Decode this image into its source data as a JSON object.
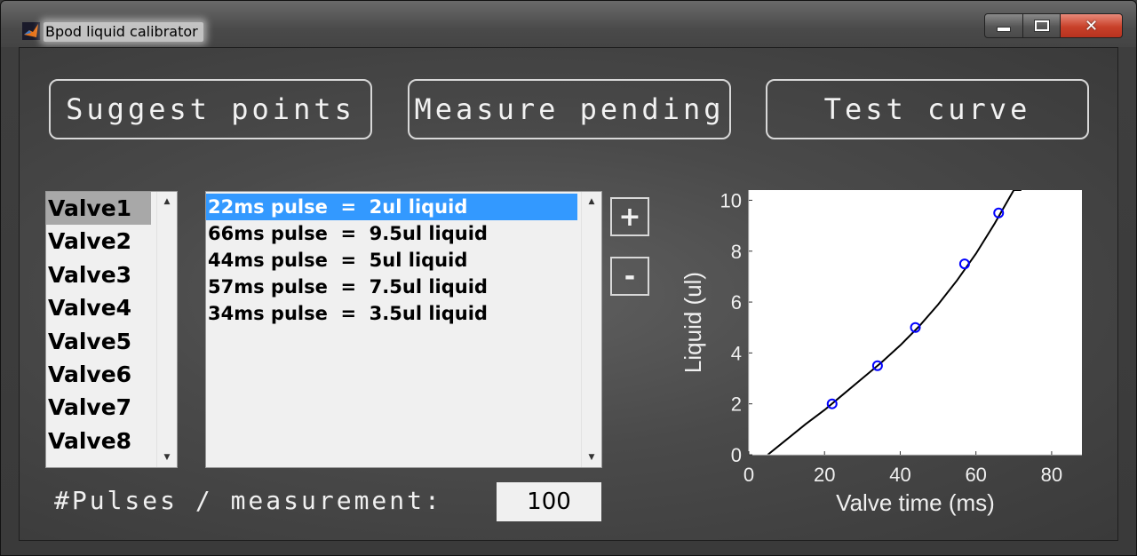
{
  "window": {
    "title": "Bpod liquid calibrator",
    "controls": {
      "minimize": "–",
      "maximize": "□",
      "close": "✕"
    }
  },
  "toolbar": {
    "suggest_label": "Suggest points",
    "measure_label": "Measure pending",
    "test_label": "Test curve"
  },
  "valves": {
    "selected_index": 0,
    "items": [
      "Valve1",
      "Valve2",
      "Valve3",
      "Valve4",
      "Valve5",
      "Valve6",
      "Valve7",
      "Valve8"
    ]
  },
  "measurements": {
    "selected_index": 0,
    "items": [
      "22ms pulse  =  2ul liquid",
      "66ms pulse  =  9.5ul liquid",
      "44ms pulse  =  5ul liquid",
      "57ms pulse  =  7.5ul liquid",
      "34ms pulse  =  3.5ul liquid"
    ]
  },
  "buttons": {
    "add_label": "+",
    "remove_label": "-"
  },
  "pulses": {
    "label": "#Pulses / measurement:",
    "value": "100"
  },
  "colors": {
    "points": "#0000ff",
    "curve": "#000000",
    "selection": "#3399ff"
  },
  "chart_data": {
    "type": "scatter",
    "xlabel": "Valve time (ms)",
    "ylabel": "Liquid (ul)",
    "xlim": [
      0,
      88
    ],
    "ylim": [
      0,
      10.4
    ],
    "xticks": [
      0,
      20,
      40,
      60,
      80
    ],
    "yticks": [
      0,
      2,
      4,
      6,
      8,
      10
    ],
    "grid": false,
    "series": [
      {
        "x": [
          22,
          34,
          44,
          57,
          66
        ],
        "y": [
          2,
          3.5,
          5,
          7.5,
          9.5
        ]
      }
    ],
    "fit_curve": {
      "x": [
        5,
        10,
        15,
        20,
        25,
        30,
        35,
        40,
        45,
        50,
        55,
        60,
        65,
        70,
        72
      ],
      "y": [
        0.0,
        0.6,
        1.2,
        1.76,
        2.38,
        3.0,
        3.62,
        4.3,
        5.05,
        5.9,
        6.85,
        7.9,
        9.1,
        10.4,
        10.4
      ]
    }
  }
}
